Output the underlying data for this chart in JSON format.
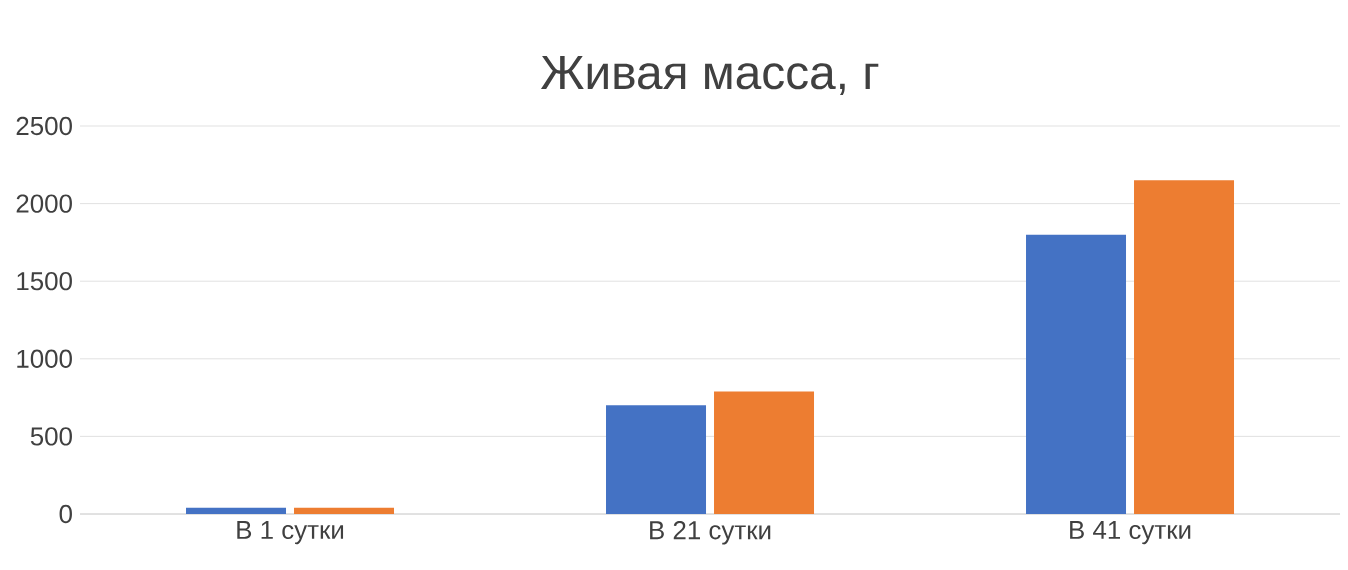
{
  "chart_data": {
    "type": "bar",
    "title": "Живая масса, г",
    "categories": [
      "В  1 сутки",
      "В 21 сутки",
      "В 41 сутки"
    ],
    "series": [
      {
        "color": "#4472c4",
        "values": [
          40,
          700,
          1800
        ]
      },
      {
        "color": "#ed7d31",
        "values": [
          40,
          790,
          2150
        ]
      }
    ],
    "ylim": [
      0,
      2500
    ],
    "yticks": [
      0,
      500,
      1000,
      1500,
      2000,
      2500
    ],
    "grid": "y"
  }
}
